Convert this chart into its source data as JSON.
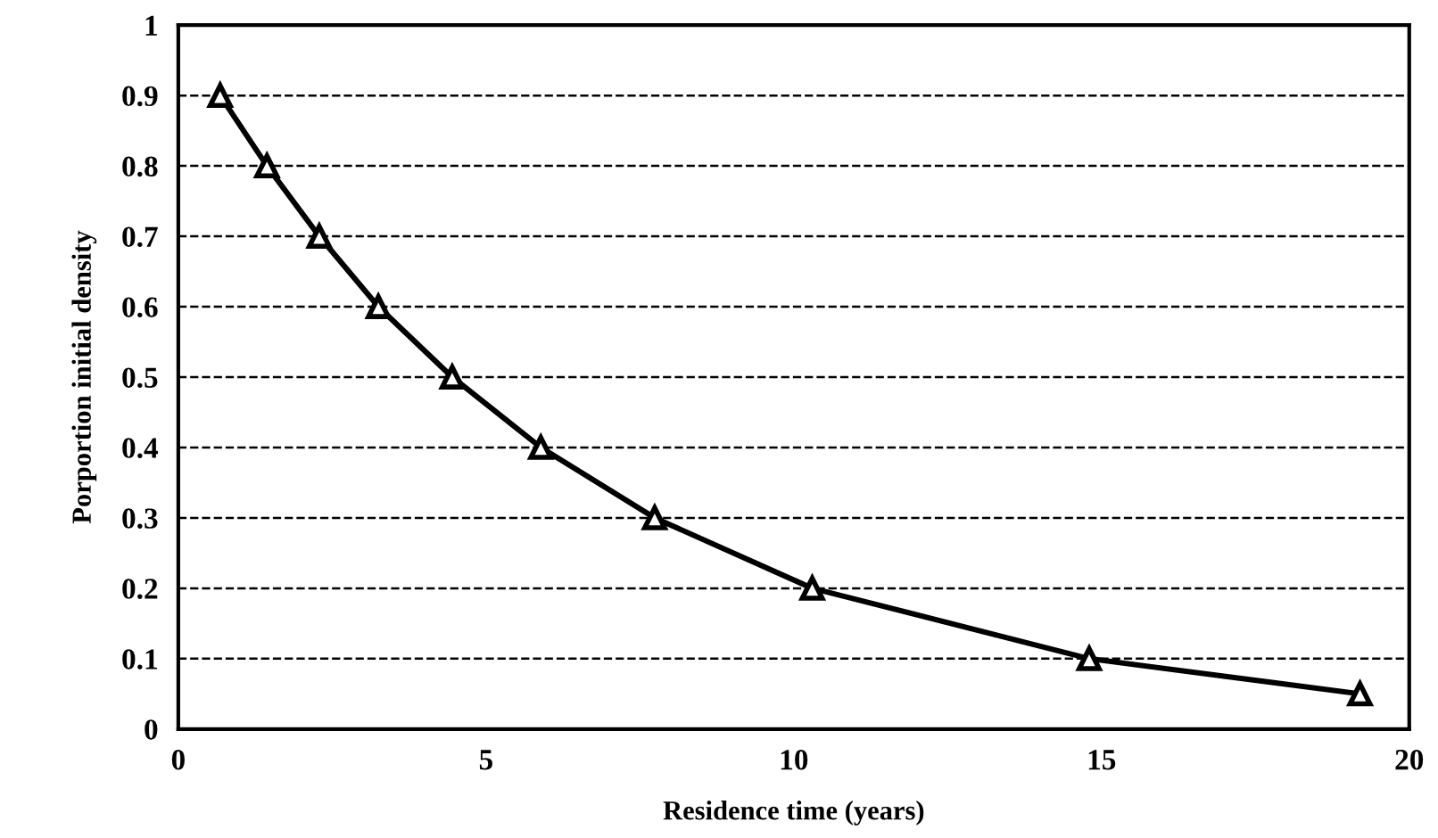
{
  "chart_data": {
    "type": "line",
    "xlabel": "Residence time (years)",
    "ylabel": "Porportion initial density",
    "x": [
      0.68,
      1.44,
      2.29,
      3.25,
      4.45,
      5.89,
      7.74,
      10.3,
      14.8,
      19.2
    ],
    "series": [
      {
        "color": "#000000",
        "values": [
          0.9,
          0.8,
          0.7,
          0.6,
          0.5,
          0.4,
          0.3,
          0.2,
          0.1,
          0.05
        ]
      }
    ],
    "xlim": [
      0,
      20
    ],
    "xticks": [
      0,
      5,
      10,
      15,
      20
    ],
    "ylim": [
      0,
      1
    ],
    "yticks": [
      0,
      0.1,
      0.2,
      0.3,
      0.4,
      0.5,
      0.6,
      0.7,
      0.8,
      0.9,
      1
    ],
    "grid": "y",
    "marker": "triangle",
    "line_style": "solid"
  }
}
